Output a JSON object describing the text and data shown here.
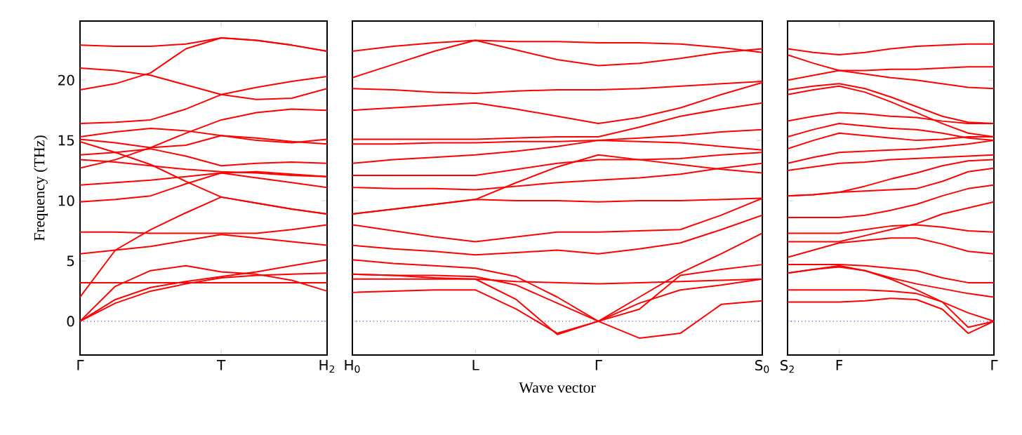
{
  "chart_data": [
    {
      "type": "line",
      "ylabel": "Frequency (THz)",
      "ylim": [
        -2.8,
        24.9
      ],
      "categories": [
        "Γ",
        null,
        null,
        null,
        "T",
        null,
        null,
        "H$_{2}$"
      ],
      "yticks": [
        0,
        5,
        10,
        15,
        20
      ],
      "grid": false,
      "ref_lines": [
        {
          "axis": "y",
          "value": 0,
          "color": "#0000ff",
          "line_style": "dotted"
        }
      ],
      "series": [
        {
          "color": "#ff0000",
          "values": [
            22.9,
            22.8,
            22.8,
            23.0,
            23.5,
            23.3,
            22.9,
            22.4
          ]
        },
        {
          "color": "#ff0000",
          "values": [
            19.2,
            19.7,
            20.6,
            22.6,
            23.5,
            23.3,
            22.9,
            22.4
          ]
        },
        {
          "color": "#ff0000",
          "values": [
            21.0,
            20.8,
            20.4,
            19.6,
            18.8,
            18.4,
            18.5,
            19.3
          ]
        },
        {
          "color": "#ff0000",
          "values": [
            16.4,
            16.5,
            16.7,
            17.6,
            18.8,
            19.4,
            19.9,
            20.3
          ]
        },
        {
          "color": "#ff0000",
          "values": [
            15.3,
            15.7,
            16.0,
            15.8,
            15.4,
            15.0,
            14.8,
            15.1
          ]
        },
        {
          "color": "#ff0000",
          "values": [
            15.1,
            14.8,
            14.4,
            14.6,
            15.4,
            15.2,
            14.9,
            14.7
          ]
        },
        {
          "color": "#ff0000",
          "values": [
            13.8,
            14.0,
            14.3,
            13.7,
            12.9,
            13.1,
            13.2,
            13.1
          ]
        },
        {
          "color": "#ff0000",
          "values": [
            13.4,
            13.2,
            12.9,
            12.6,
            12.4,
            12.3,
            12.1,
            12.0
          ]
        },
        {
          "color": "#ff0000",
          "values": [
            12.7,
            13.4,
            14.4,
            15.6,
            16.7,
            17.3,
            17.6,
            17.5
          ]
        },
        {
          "color": "#ff0000",
          "values": [
            11.3,
            11.5,
            11.7,
            12.0,
            12.3,
            11.9,
            11.5,
            11.1
          ]
        },
        {
          "color": "#ff0000",
          "values": [
            9.9,
            10.1,
            10.4,
            11.4,
            12.3,
            12.4,
            12.2,
            12.0
          ]
        },
        {
          "color": "#ff0000",
          "values": [
            14.9,
            14.0,
            13.0,
            11.6,
            10.3,
            9.8,
            9.3,
            8.9
          ]
        },
        {
          "color": "#ff0000",
          "values": [
            7.4,
            7.4,
            7.3,
            7.3,
            7.3,
            7.3,
            7.6,
            8.0
          ]
        },
        {
          "color": "#ff0000",
          "values": [
            5.6,
            5.9,
            6.2,
            6.7,
            7.2,
            6.9,
            6.6,
            6.3
          ]
        },
        {
          "color": "#ff0000",
          "values": [
            2.0,
            5.9,
            7.6,
            9.0,
            10.3,
            9.8,
            9.3,
            8.9
          ]
        },
        {
          "color": "#ff0000",
          "values": [
            3.2,
            3.2,
            3.2,
            3.2,
            3.2,
            3.2,
            3.2,
            3.2
          ]
        },
        {
          "color": "#ff0000",
          "values": [
            0,
            2.9,
            4.2,
            4.6,
            4.1,
            3.9,
            3.4,
            2.5
          ]
        },
        {
          "color": "#ff0000",
          "values": [
            0,
            1.8,
            2.8,
            3.3,
            3.7,
            4.1,
            4.6,
            5.1
          ]
        },
        {
          "color": "#ff0000",
          "values": [
            0,
            1.5,
            2.5,
            3.1,
            3.6,
            3.8,
            3.9,
            4.0
          ]
        }
      ]
    },
    {
      "type": "line",
      "xlabel": "Wave vector",
      "ylim": [
        -2.8,
        24.9
      ],
      "tick_labels": "x",
      "categories": [
        "H$_{0}$",
        null,
        null,
        "L",
        null,
        null,
        "Γ",
        null,
        null,
        null,
        "S$_{0}$"
      ],
      "yticks": [
        0,
        5,
        10,
        15,
        20
      ],
      "grid": false,
      "ref_lines": [
        {
          "axis": "y",
          "value": 0,
          "color": "#0000ff",
          "line_style": "dotted"
        }
      ],
      "series": [
        {
          "color": "#ff0000",
          "values": [
            22.4,
            22.8,
            23.1,
            23.3,
            23.2,
            23.2,
            23.1,
            23.1,
            23.0,
            22.7,
            22.3
          ]
        },
        {
          "color": "#ff0000",
          "values": [
            20.2,
            21.3,
            22.4,
            23.3,
            22.5,
            21.7,
            21.2,
            21.4,
            21.8,
            22.3,
            22.6
          ]
        },
        {
          "color": "#ff0000",
          "values": [
            19.3,
            19.2,
            19.0,
            18.9,
            19.1,
            19.2,
            19.2,
            19.3,
            19.5,
            19.7,
            19.9
          ]
        },
        {
          "color": "#ff0000",
          "values": [
            17.5,
            17.7,
            17.9,
            18.1,
            17.6,
            17.0,
            16.4,
            16.9,
            17.7,
            18.8,
            19.8
          ]
        },
        {
          "color": "#ff0000",
          "values": [
            15.1,
            15.1,
            15.1,
            15.1,
            15.2,
            15.3,
            15.3,
            16.1,
            17.0,
            17.6,
            18.1
          ]
        },
        {
          "color": "#ff0000",
          "values": [
            14.7,
            14.7,
            14.8,
            14.8,
            14.9,
            14.9,
            15.0,
            15.2,
            15.4,
            15.7,
            15.9
          ]
        },
        {
          "color": "#ff0000",
          "values": [
            13.1,
            13.4,
            13.6,
            13.8,
            14.1,
            14.5,
            15.0,
            14.9,
            14.8,
            14.5,
            14.2
          ]
        },
        {
          "color": "#ff0000",
          "values": [
            12.1,
            12.1,
            12.1,
            12.1,
            12.6,
            13.1,
            13.4,
            13.4,
            13.5,
            13.8,
            14.0
          ]
        },
        {
          "color": "#ff0000",
          "values": [
            11.1,
            11.0,
            11.0,
            10.9,
            11.2,
            11.5,
            11.7,
            11.9,
            12.2,
            12.7,
            13.1
          ]
        },
        {
          "color": "#ff0000",
          "values": [
            8.9,
            9.3,
            9.7,
            10.1,
            11.5,
            12.8,
            13.8,
            13.4,
            13.0,
            12.6,
            12.3
          ]
        },
        {
          "color": "#ff0000",
          "values": [
            8.9,
            9.3,
            9.7,
            10.1,
            10.0,
            10.0,
            9.9,
            10.0,
            10.0,
            10.1,
            10.2
          ]
        },
        {
          "color": "#ff0000",
          "values": [
            8.0,
            7.5,
            7.0,
            6.6,
            7.0,
            7.4,
            7.4,
            7.5,
            7.6,
            8.8,
            10.2
          ]
        },
        {
          "color": "#ff0000",
          "values": [
            6.3,
            6.0,
            5.8,
            5.5,
            5.7,
            5.9,
            5.6,
            6.0,
            6.5,
            7.6,
            8.8
          ]
        },
        {
          "color": "#ff0000",
          "values": [
            5.1,
            4.8,
            4.6,
            4.4,
            3.7,
            2.0,
            0,
            2.0,
            4.0,
            5.6,
            7.3
          ]
        },
        {
          "color": "#ff0000",
          "values": [
            3.9,
            3.8,
            3.8,
            3.7,
            3.0,
            1.5,
            0,
            1.5,
            2.6,
            3.0,
            3.5
          ]
        },
        {
          "color": "#ff0000",
          "values": [
            3.5,
            3.5,
            3.5,
            3.5,
            3.3,
            3.2,
            3.1,
            3.2,
            3.3,
            3.4,
            3.5
          ]
        },
        {
          "color": "#ff0000",
          "values": [
            2.4,
            2.5,
            2.6,
            2.6,
            1.0,
            -1.0,
            0,
            -1.4,
            -1.0,
            1.4,
            1.7
          ]
        },
        {
          "color": "#ff0000",
          "values": [
            3.9,
            3.8,
            3.6,
            3.5,
            1.8,
            -1.1,
            0,
            1.0,
            3.8,
            4.3,
            4.7
          ]
        }
      ]
    },
    {
      "type": "line",
      "ylim": [
        -2.8,
        24.9
      ],
      "tick_labels": "x",
      "categories": [
        "S$_{2}$",
        null,
        "F",
        null,
        null,
        null,
        null,
        null,
        "Γ"
      ],
      "yticks": [
        0,
        5,
        10,
        15,
        20
      ],
      "grid": false,
      "ref_lines": [
        {
          "axis": "y",
          "value": 0,
          "color": "#0000ff",
          "line_style": "dotted"
        }
      ],
      "series": [
        {
          "color": "#ff0000",
          "values": [
            22.6,
            22.3,
            22.1,
            22.3,
            22.6,
            22.8,
            22.9,
            23.0,
            23.0
          ]
        },
        {
          "color": "#ff0000",
          "values": [
            22.1,
            21.4,
            20.8,
            20.8,
            20.9,
            20.9,
            21.0,
            21.1,
            21.1
          ]
        },
        {
          "color": "#ff0000",
          "values": [
            20.0,
            20.4,
            20.8,
            20.5,
            20.2,
            20.0,
            19.7,
            19.4,
            19.3
          ]
        },
        {
          "color": "#ff0000",
          "values": [
            19.2,
            19.5,
            19.7,
            19.3,
            18.6,
            17.8,
            17.0,
            16.5,
            16.4
          ]
        },
        {
          "color": "#ff0000",
          "values": [
            18.8,
            19.2,
            19.5,
            19.0,
            18.2,
            17.3,
            16.4,
            15.6,
            15.3
          ]
        },
        {
          "color": "#ff0000",
          "values": [
            16.6,
            17.0,
            17.3,
            17.2,
            17.0,
            16.9,
            16.6,
            16.4,
            16.4
          ]
        },
        {
          "color": "#ff0000",
          "values": [
            15.3,
            15.9,
            16.4,
            16.2,
            16.0,
            15.9,
            15.6,
            15.2,
            15.0
          ]
        },
        {
          "color": "#ff0000",
          "values": [
            14.3,
            15.0,
            15.6,
            15.4,
            15.2,
            15.0,
            15.1,
            15.3,
            15.3
          ]
        },
        {
          "color": "#ff0000",
          "values": [
            13.1,
            13.6,
            14.0,
            14.1,
            14.2,
            14.3,
            14.5,
            14.7,
            15.0
          ]
        },
        {
          "color": "#ff0000",
          "values": [
            12.5,
            12.8,
            13.1,
            13.2,
            13.4,
            13.5,
            13.6,
            13.7,
            13.8
          ]
        },
        {
          "color": "#ff0000",
          "values": [
            10.4,
            10.5,
            10.7,
            11.2,
            11.8,
            12.3,
            12.9,
            13.3,
            13.4
          ]
        },
        {
          "color": "#ff0000",
          "values": [
            10.4,
            10.5,
            10.7,
            10.8,
            10.9,
            11.0,
            11.6,
            12.4,
            12.7
          ]
        },
        {
          "color": "#ff0000",
          "values": [
            8.6,
            8.6,
            8.6,
            8.8,
            9.2,
            9.7,
            10.4,
            11.0,
            11.3
          ]
        },
        {
          "color": "#ff0000",
          "values": [
            7.3,
            7.3,
            7.3,
            7.6,
            7.9,
            8.0,
            7.8,
            7.5,
            7.4
          ]
        },
        {
          "color": "#ff0000",
          "values": [
            6.6,
            6.6,
            6.6,
            7.1,
            7.6,
            8.1,
            8.9,
            9.4,
            9.9
          ]
        },
        {
          "color": "#ff0000",
          "values": [
            5.3,
            5.9,
            6.5,
            6.7,
            6.9,
            6.9,
            6.4,
            5.8,
            5.6
          ]
        },
        {
          "color": "#ff0000",
          "values": [
            4.7,
            4.7,
            4.7,
            4.6,
            4.4,
            4.2,
            3.6,
            3.2,
            3.2
          ]
        },
        {
          "color": "#ff0000",
          "values": [
            4.0,
            4.3,
            4.5,
            4.2,
            3.6,
            3.1,
            2.7,
            2.3,
            2.0
          ]
        },
        {
          "color": "#ff0000",
          "values": [
            2.6,
            2.6,
            2.6,
            2.6,
            2.5,
            2.3,
            1.6,
            0.7,
            0
          ]
        },
        {
          "color": "#ff0000",
          "values": [
            1.6,
            1.6,
            1.6,
            1.7,
            1.9,
            1.8,
            1.0,
            -1.0,
            0
          ]
        },
        {
          "color": "#ff0000",
          "values": [
            4.0,
            4.3,
            4.6,
            4.2,
            3.5,
            2.6,
            1.6,
            -0.5,
            0
          ]
        }
      ]
    }
  ]
}
